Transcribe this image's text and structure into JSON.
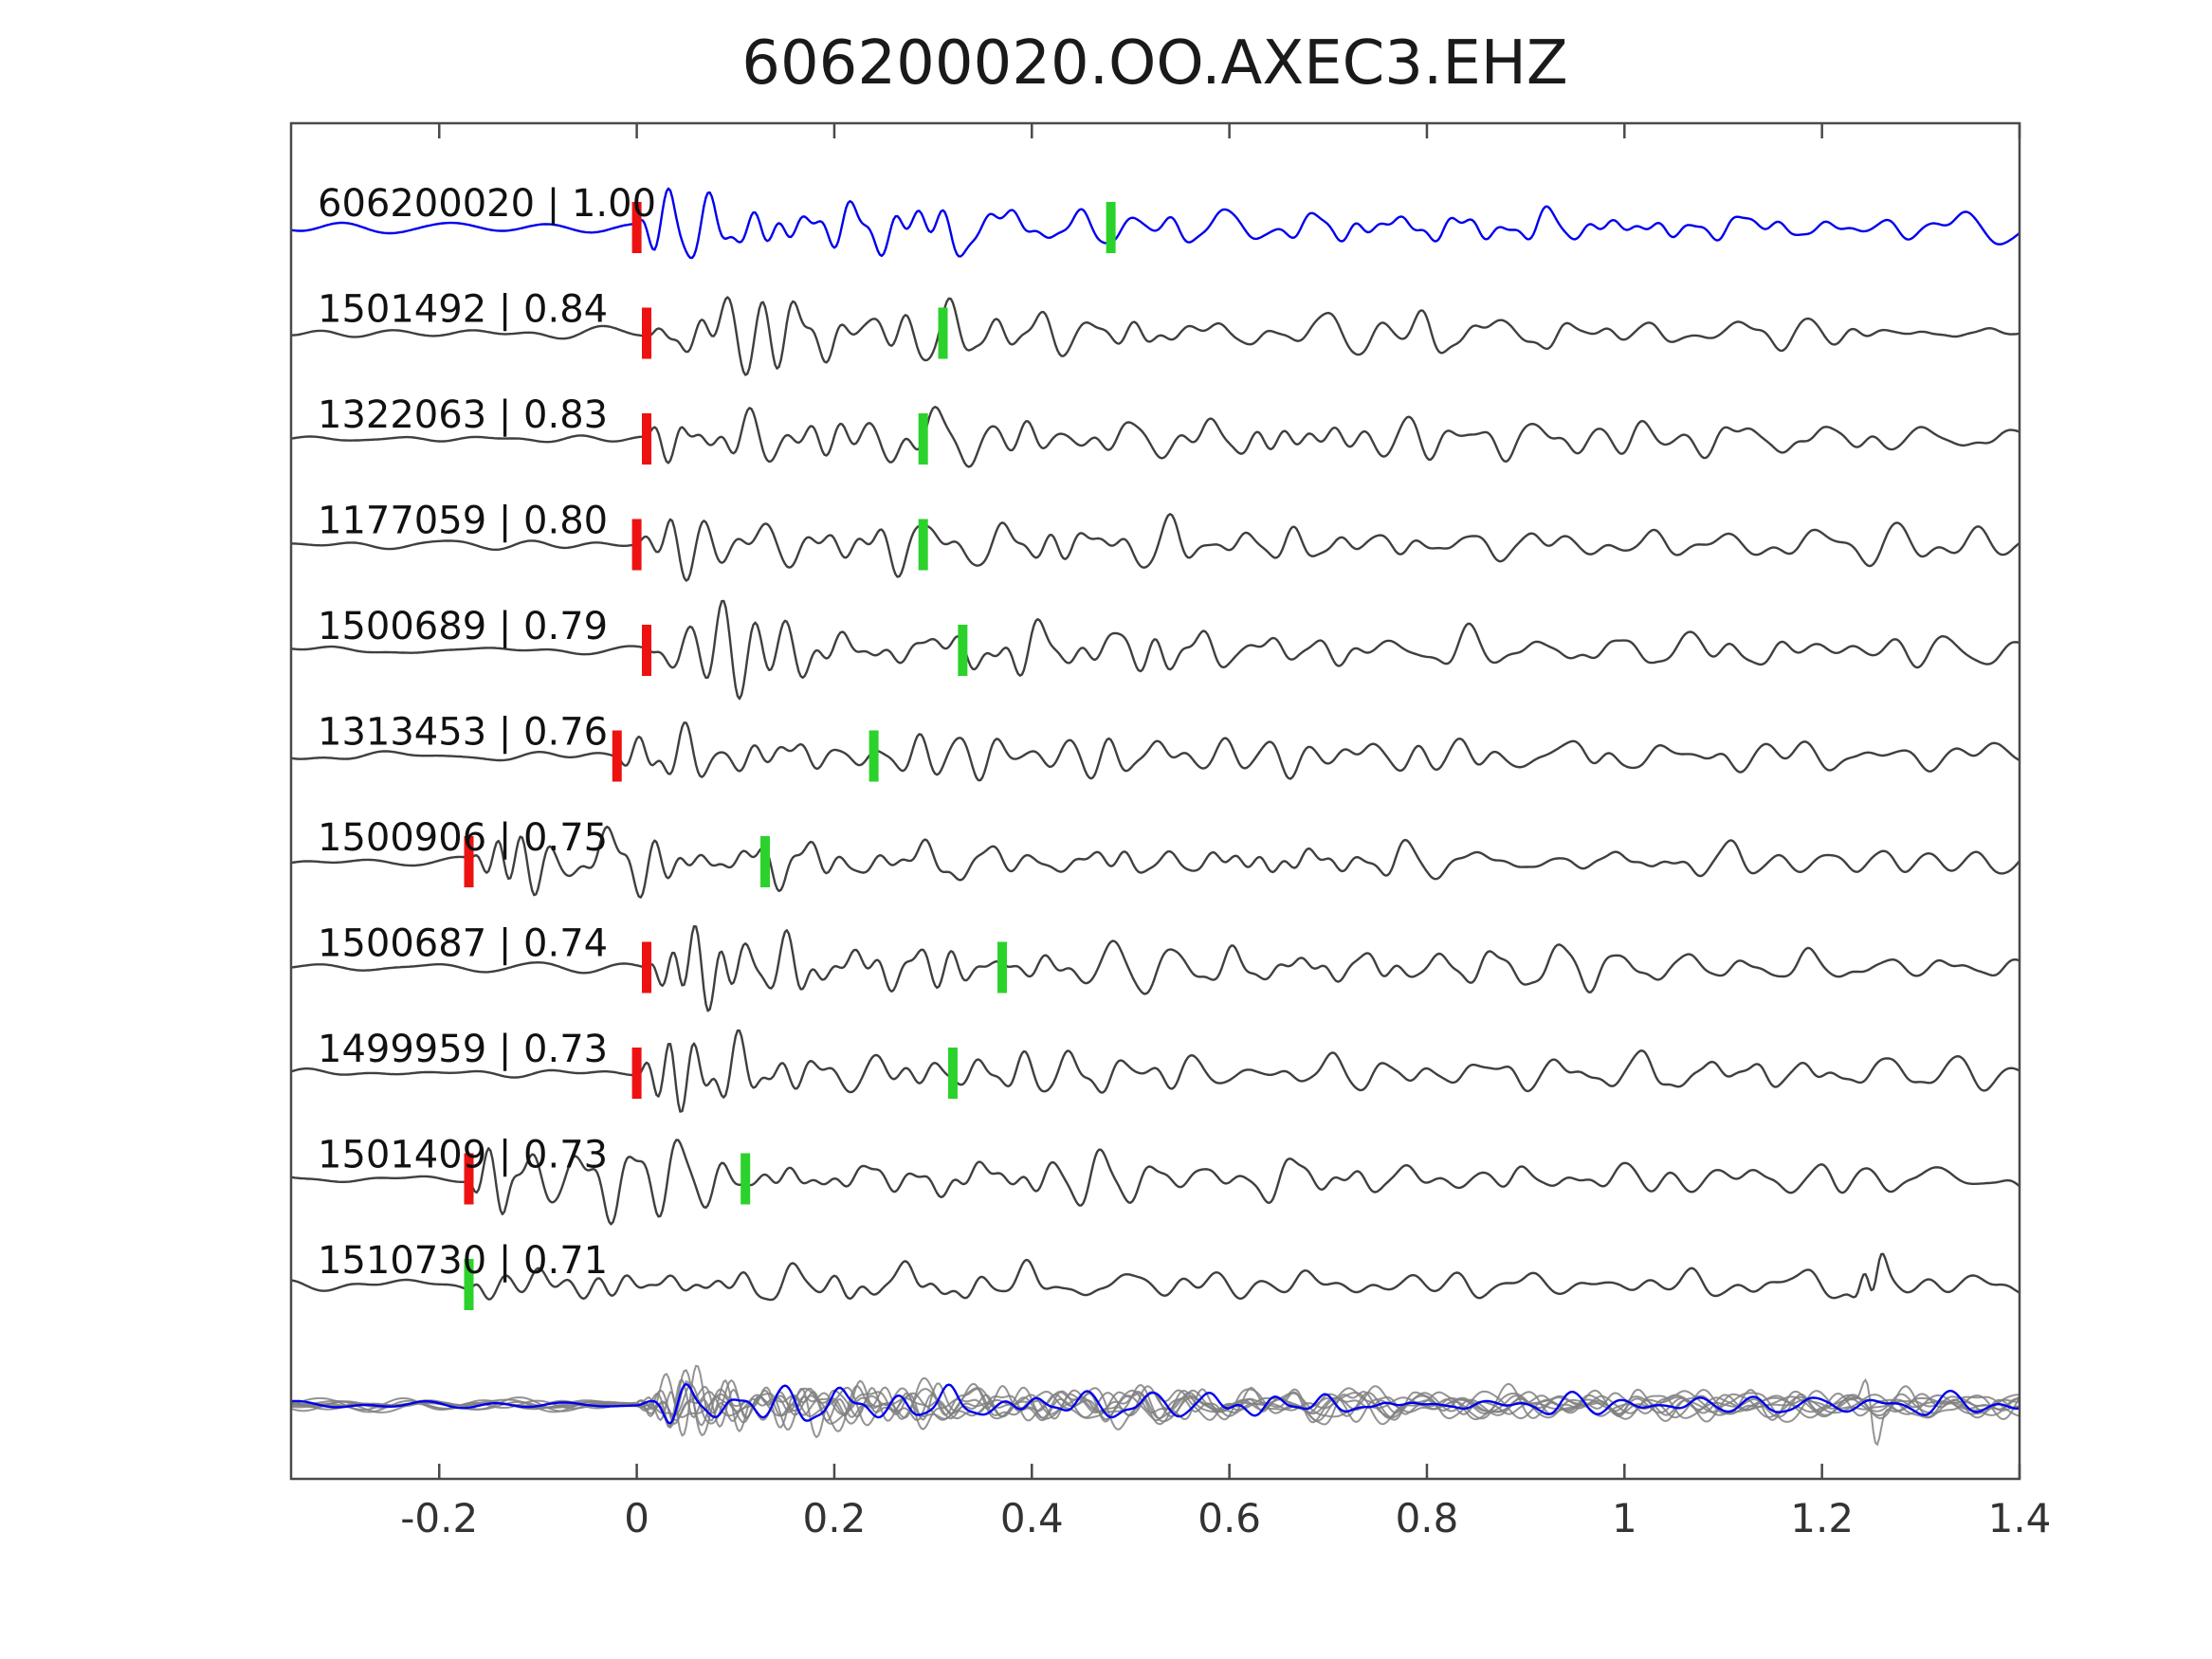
{
  "title": "606200020.OO.AXEC3.EHZ",
  "colors": {
    "background": "#ffffff",
    "template_trace": "#0000ee",
    "detection_trace": "#3f3f3f",
    "stack_trace": "#808080",
    "pick_red": "#ee1111",
    "pick_green": "#2bd22b",
    "axis": "#4a4a4a",
    "tick_label": "#333333",
    "title_text": "#1a1a1a"
  },
  "chart_data": {
    "type": "line",
    "subtype": "seismic-waveform-stack",
    "title": "606200020.OO.AXEC3.EHZ",
    "xlabel": "",
    "ylabel": "",
    "xlim": [
      -0.35,
      1.4
    ],
    "x_ticks": [
      -0.2,
      0,
      0.2,
      0.4,
      0.6,
      0.8,
      1,
      1.2,
      1.4
    ],
    "x_tick_labels": [
      "-0.2",
      "0",
      "0.2",
      "0.4",
      "0.6",
      "0.8",
      "1",
      "1.2",
      "1.4"
    ],
    "grid": false,
    "legend": null,
    "traces": [
      {
        "id": "606200020",
        "correlation": 1.0,
        "label": "606200020 | 1.00",
        "role": "template",
        "red_pick": 0.0,
        "green_pick": 0.48,
        "transient": null
      },
      {
        "id": "1501492",
        "correlation": 0.84,
        "label": "1501492 | 0.84",
        "role": "detection",
        "red_pick": 0.01,
        "green_pick": 0.31,
        "transient": null
      },
      {
        "id": "1322063",
        "correlation": 0.83,
        "label": "1322063 | 0.83",
        "role": "detection",
        "red_pick": 0.01,
        "green_pick": 0.29,
        "transient": null
      },
      {
        "id": "1177059",
        "correlation": 0.8,
        "label": "1177059 | 0.80",
        "role": "detection",
        "red_pick": 0.0,
        "green_pick": 0.29,
        "transient": null
      },
      {
        "id": "1500689",
        "correlation": 0.79,
        "label": "1500689 | 0.79",
        "role": "detection",
        "red_pick": 0.01,
        "green_pick": 0.33,
        "transient": null
      },
      {
        "id": "1313453",
        "correlation": 0.76,
        "label": "1313453 | 0.76",
        "role": "detection",
        "red_pick": -0.02,
        "green_pick": 0.24,
        "transient": null
      },
      {
        "id": "1500906",
        "correlation": 0.75,
        "label": "1500906 | 0.75",
        "role": "detection",
        "red_pick": -0.17,
        "green_pick": 0.13,
        "transient": null
      },
      {
        "id": "1500687",
        "correlation": 0.74,
        "label": "1500687 | 0.74",
        "role": "detection",
        "red_pick": 0.01,
        "green_pick": 0.37,
        "transient": null
      },
      {
        "id": "1499959",
        "correlation": 0.73,
        "label": "1499959 | 0.73",
        "role": "detection",
        "red_pick": 0.0,
        "green_pick": 0.32,
        "transient": null
      },
      {
        "id": "1501409",
        "correlation": 0.73,
        "label": "1501409 | 0.73",
        "role": "detection",
        "red_pick": -0.17,
        "green_pick": 0.11,
        "transient": null
      },
      {
        "id": "1510730",
        "correlation": 0.71,
        "label": "1510730 | 0.71",
        "role": "detection",
        "red_pick": null,
        "green_pick": -0.17,
        "transient": 1.25
      }
    ],
    "stack": {
      "description": "all detections overlaid, aligned on pick, with blue template trace on top",
      "gray_trace_count": 8,
      "template_overlay": true,
      "transient": 1.25
    }
  }
}
